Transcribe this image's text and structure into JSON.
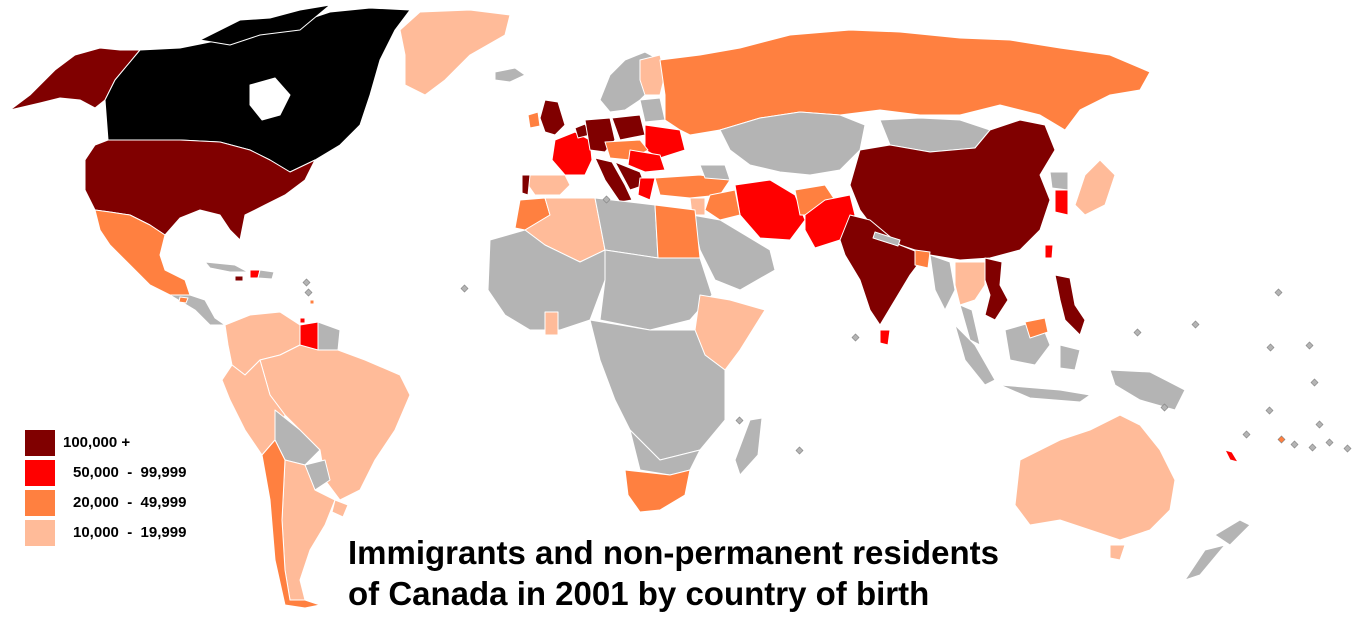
{
  "title_lines": [
    "Immigrants and non-permanent residents",
    "of Canada in 2001 by country of birth"
  ],
  "legend": [
    {
      "label": "100,000 +",
      "color": "#800000"
    },
    {
      "label": "50,000  -  99,999",
      "color": "#ff0000"
    },
    {
      "label": "20,000  -  49,999",
      "color": "#ff8040"
    },
    {
      "label": "10,000  -  19,999",
      "color": "#ffbb99"
    }
  ],
  "colors": {
    "canada": "#000000",
    "no_data": "#b4b4b4",
    "background": "#ffffff",
    "borders": "#ffffff"
  },
  "regions": [
    {
      "name": "Canada",
      "class": "canada"
    },
    {
      "name": "United States",
      "class": "100,000 +"
    },
    {
      "name": "United Kingdom",
      "class": "100,000 +"
    },
    {
      "name": "Germany",
      "class": "100,000 +"
    },
    {
      "name": "Poland",
      "class": "100,000 +"
    },
    {
      "name": "Italy",
      "class": "100,000 +"
    },
    {
      "name": "Portugal",
      "class": "100,000 +"
    },
    {
      "name": "Netherlands",
      "class": "100,000 +"
    },
    {
      "name": "Former Yugoslavia",
      "class": "100,000 +"
    },
    {
      "name": "China",
      "class": "100,000 +"
    },
    {
      "name": "India",
      "class": "100,000 +"
    },
    {
      "name": "Vietnam",
      "class": "100,000 +"
    },
    {
      "name": "Philippines",
      "class": "100,000 +"
    },
    {
      "name": "Jamaica",
      "class": "100,000 +"
    },
    {
      "name": "Hong Kong",
      "class": "100,000 +"
    },
    {
      "name": "France",
      "class": "50,000  -  99,999"
    },
    {
      "name": "Ukraine",
      "class": "50,000  -  99,999"
    },
    {
      "name": "Hungary",
      "class": "50,000  -  99,999"
    },
    {
      "name": "Romania",
      "class": "50,000  -  99,999"
    },
    {
      "name": "Greece",
      "class": "50,000  -  99,999"
    },
    {
      "name": "Iran",
      "class": "50,000  -  99,999"
    },
    {
      "name": "Pakistan",
      "class": "50,000  -  99,999"
    },
    {
      "name": "South Korea",
      "class": "50,000  -  99,999"
    },
    {
      "name": "Taiwan",
      "class": "50,000  -  99,999"
    },
    {
      "name": "Sri Lanka",
      "class": "50,000  -  99,999"
    },
    {
      "name": "Guyana",
      "class": "50,000  -  99,999"
    },
    {
      "name": "Haiti",
      "class": "50,000  -  99,999"
    },
    {
      "name": "Trinidad and Tobago",
      "class": "50,000  -  99,999"
    },
    {
      "name": "Fiji",
      "class": "50,000  -  99,999"
    },
    {
      "name": "Russia",
      "class": "20,000  -  49,999"
    },
    {
      "name": "Mexico",
      "class": "20,000  -  49,999"
    },
    {
      "name": "Chile",
      "class": "20,000  -  49,999"
    },
    {
      "name": "South Africa",
      "class": "20,000  -  49,999"
    },
    {
      "name": "Egypt",
      "class": "20,000  -  49,999"
    },
    {
      "name": "Morocco",
      "class": "20,000  -  49,999"
    },
    {
      "name": "Turkey",
      "class": "20,000  -  49,999"
    },
    {
      "name": "Lebanon",
      "class": "20,000  -  49,999"
    },
    {
      "name": "Iraq",
      "class": "20,000  -  49,999"
    },
    {
      "name": "Afghanistan",
      "class": "20,000  -  49,999"
    },
    {
      "name": "Bangladesh",
      "class": "20,000  -  49,999"
    },
    {
      "name": "Japan",
      "class": "20,000  -  49,999"
    },
    {
      "name": "Malaysia",
      "class": "20,000  -  49,999"
    },
    {
      "name": "Ireland",
      "class": "20,000  -  49,999"
    },
    {
      "name": "Belgium",
      "class": "20,000  -  49,999"
    },
    {
      "name": "Czech Republic",
      "class": "20,000  -  49,999"
    },
    {
      "name": "El Salvador",
      "class": "20,000  -  49,999"
    },
    {
      "name": "Barbados",
      "class": "20,000  -  49,999"
    },
    {
      "name": "Greenland",
      "class": "10,000  -  19,999"
    },
    {
      "name": "Brazil",
      "class": "10,000  -  19,999"
    },
    {
      "name": "Colombia",
      "class": "10,000  -  19,999"
    },
    {
      "name": "Peru",
      "class": "10,000  -  19,999"
    },
    {
      "name": "Ecuador",
      "class": "10,000  -  19,999"
    },
    {
      "name": "Venezuela",
      "class": "10,000  -  19,999"
    },
    {
      "name": "Argentina",
      "class": "10,000  -  19,999"
    },
    {
      "name": "Uruguay",
      "class": "10,000  -  19,999"
    },
    {
      "name": "Australia",
      "class": "10,000  -  19,999"
    },
    {
      "name": "New Zealand",
      "class": "10,000  -  19,999"
    },
    {
      "name": "Algeria",
      "class": "10,000  -  19,999"
    },
    {
      "name": "Spain",
      "class": "10,000  -  19,999"
    },
    {
      "name": "Ethiopia",
      "class": "10,000  -  19,999"
    },
    {
      "name": "Somalia",
      "class": "10,000  -  19,999"
    },
    {
      "name": "Kenya",
      "class": "10,000  -  19,999"
    },
    {
      "name": "Ghana",
      "class": "10,000  -  19,999"
    },
    {
      "name": "Finland",
      "class": "10,000  -  19,999"
    },
    {
      "name": "Thailand",
      "class": "10,000  -  19,999"
    },
    {
      "name": "Cambodia",
      "class": "10,000  -  19,999"
    },
    {
      "name": "Laos",
      "class": "10,000  -  19,999"
    },
    {
      "name": "Indonesia",
      "class": "no data"
    },
    {
      "name": "Africa (other)",
      "class": "no data"
    }
  ]
}
